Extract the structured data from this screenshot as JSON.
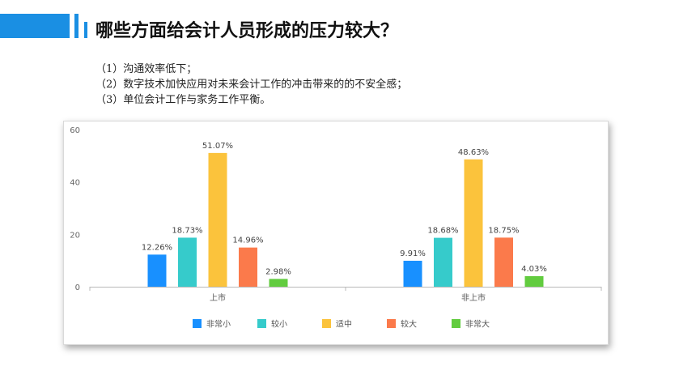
{
  "header": {
    "title": "哪些方面给会计人员形成的压力较大？"
  },
  "points": [
    "（1）沟通效率低下；",
    "（2）数字技术加快应用对未来会计工作的冲击带来的的不安全感；",
    "（3）单位会计工作与家务工作平衡。"
  ],
  "colors": {
    "accent": "#1a8fe3"
  },
  "chart_data": {
    "type": "bar",
    "categories": [
      "上市",
      "非上市"
    ],
    "series": [
      {
        "name": "非常小",
        "values": [
          12.26,
          9.91
        ],
        "labels": [
          "12.26%",
          "9.91%"
        ],
        "color": "#1890ff"
      },
      {
        "name": "较小",
        "values": [
          18.73,
          18.68
        ],
        "labels": [
          "18.73%",
          "18.68%"
        ],
        "color": "#36cbcb"
      },
      {
        "name": "适中",
        "values": [
          51.07,
          48.63
        ],
        "labels": [
          "51.07%",
          "48.63%"
        ],
        "color": "#fbc33c"
      },
      {
        "name": "较大",
        "values": [
          14.96,
          18.75
        ],
        "labels": [
          "14.96%",
          "18.75%"
        ],
        "color": "#fb7a4b"
      },
      {
        "name": "非常大",
        "values": [
          2.98,
          4.03
        ],
        "labels": [
          "2.98%",
          "4.03%"
        ],
        "color": "#62cc3f"
      }
    ],
    "yticks": [
      "0",
      "20",
      "40",
      "60"
    ],
    "ylim": [
      0,
      60
    ],
    "grid": false,
    "legend": "bottom"
  }
}
